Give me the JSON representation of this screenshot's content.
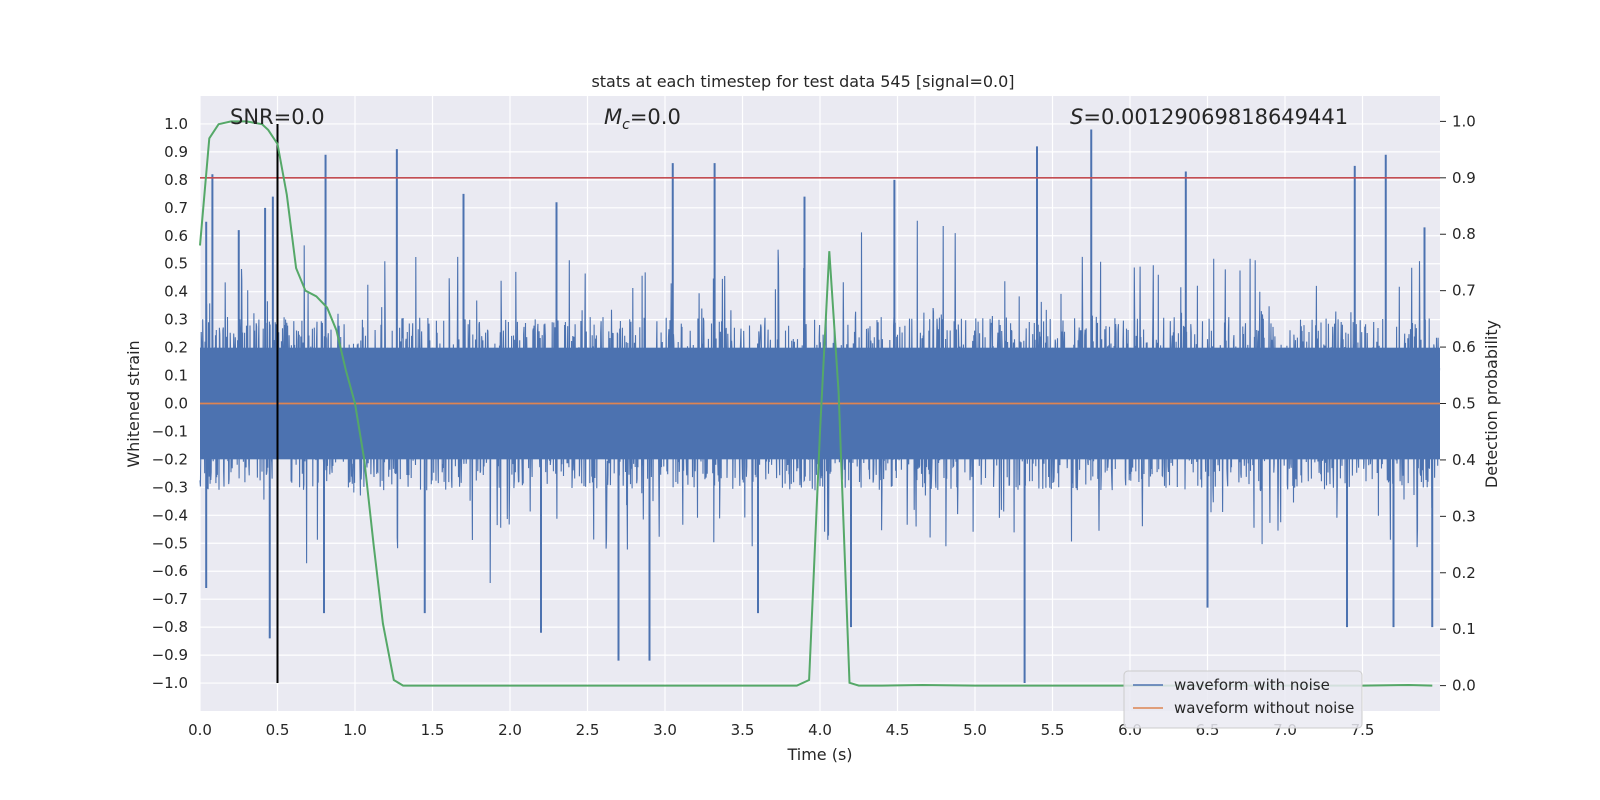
{
  "chart_data": {
    "type": "line",
    "title": "stats at each timestep for test data 545 [signal=0.0]",
    "xlabel": "Time (s)",
    "ylabel": "Whitened strain",
    "y2label": "Detection probability",
    "xlim": [
      0.0,
      8.0
    ],
    "ylim": [
      -1.1,
      1.1
    ],
    "y2lim": [
      -0.045,
      1.045
    ],
    "xticks": [
      "0.0",
      "0.5",
      "1.0",
      "1.5",
      "2.0",
      "2.5",
      "3.0",
      "3.5",
      "4.0",
      "4.5",
      "5.0",
      "5.5",
      "6.0",
      "6.5",
      "7.0",
      "7.5"
    ],
    "yticks": [
      "1.0",
      "0.9",
      "0.8",
      "0.7",
      "0.6",
      "0.5",
      "0.4",
      "0.3",
      "0.2",
      "0.1",
      "0.0",
      "−0.1",
      "−0.2",
      "−0.3",
      "−0.4",
      "−0.5",
      "−0.6",
      "−0.7",
      "−0.8",
      "−0.9",
      "−1.0"
    ],
    "y2ticks": [
      "1.0",
      "0.9",
      "0.8",
      "0.7",
      "0.6",
      "0.5",
      "0.4",
      "0.3",
      "0.2",
      "0.1",
      "0.0"
    ],
    "grid": true,
    "legend_position": "lower-right",
    "series": [
      {
        "name": "waveform with noise",
        "color": "#4c72b0",
        "axis": "left",
        "description": "dense noisy strain, mostly within ±0.3 with spikes",
        "peaks_high": [
          [
            0.04,
            0.65
          ],
          [
            0.08,
            0.82
          ],
          [
            0.25,
            0.62
          ],
          [
            0.42,
            0.7
          ],
          [
            0.47,
            0.74
          ],
          [
            0.81,
            0.89
          ],
          [
            1.27,
            0.91
          ],
          [
            1.7,
            0.75
          ],
          [
            2.3,
            0.72
          ],
          [
            3.05,
            0.86
          ],
          [
            3.32,
            0.86
          ],
          [
            3.9,
            0.74
          ],
          [
            4.48,
            0.8
          ],
          [
            5.4,
            0.92
          ],
          [
            5.75,
            0.98
          ],
          [
            6.36,
            0.83
          ],
          [
            7.45,
            0.85
          ],
          [
            7.65,
            0.89
          ],
          [
            7.9,
            0.63
          ]
        ],
        "peaks_low": [
          [
            0.04,
            -0.66
          ],
          [
            0.45,
            -0.84
          ],
          [
            0.8,
            -0.75
          ],
          [
            1.45,
            -0.75
          ],
          [
            2.2,
            -0.82
          ],
          [
            2.7,
            -0.92
          ],
          [
            2.9,
            -0.92
          ],
          [
            3.6,
            -0.75
          ],
          [
            4.2,
            -0.8
          ],
          [
            5.32,
            -1.0
          ],
          [
            6.5,
            -0.73
          ],
          [
            7.4,
            -0.8
          ],
          [
            7.7,
            -0.8
          ],
          [
            7.95,
            -0.8
          ]
        ]
      },
      {
        "name": "waveform without noise",
        "color": "#dd8452",
        "axis": "left",
        "x": [
          0.0,
          8.0
        ],
        "values": [
          0.0,
          0.0
        ]
      },
      {
        "name": "Detection probability",
        "color": "#55a868",
        "axis": "right",
        "x": [
          0.0,
          0.06,
          0.12,
          0.2,
          0.3,
          0.4,
          0.44,
          0.5,
          0.56,
          0.62,
          0.68,
          0.75,
          0.82,
          0.88,
          0.94,
          1.0,
          1.06,
          1.12,
          1.18,
          1.25,
          1.31,
          1.4,
          2.0,
          3.0,
          3.85,
          3.93,
          4.0,
          4.06,
          4.12,
          4.19,
          4.25,
          4.4,
          4.66,
          5.0,
          6.0,
          7.0,
          7.5,
          7.8,
          7.95
        ],
        "values": [
          0.78,
          0.97,
          0.995,
          1.0,
          1.0,
          0.995,
          0.985,
          0.96,
          0.87,
          0.74,
          0.7,
          0.69,
          0.67,
          0.63,
          0.56,
          0.5,
          0.4,
          0.25,
          0.11,
          0.01,
          0.0,
          0.0,
          0.0,
          0.0,
          0.0,
          0.01,
          0.45,
          0.77,
          0.52,
          0.005,
          0.0,
          0.0,
          0.001,
          0.0,
          0.0,
          0.0,
          0.0,
          0.001,
          0.0
        ]
      }
    ],
    "hlines": [
      {
        "axis": "right",
        "value": 0.9,
        "color": "#c44e52"
      }
    ],
    "vlines": [
      {
        "x": 0.5,
        "ymin": -1.0,
        "ymax": 1.0,
        "color": "#000000"
      }
    ],
    "annotations": {
      "snr": "SNR=0.0",
      "mc_symbol": "M",
      "mc_sub": "c",
      "mc_value": "=0.0",
      "s_symbol": "S",
      "s_value": "=0.00129069818649441"
    }
  }
}
